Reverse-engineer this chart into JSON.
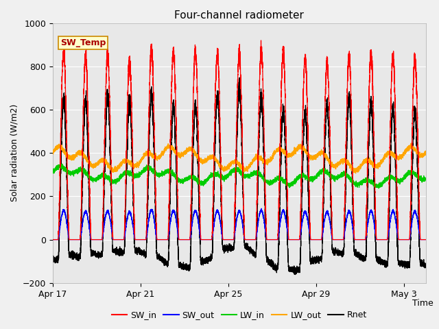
{
  "title": "Four-channel radiometer",
  "xlabel": "Time",
  "ylabel": "Solar radiation (W/m2)",
  "ylim": [
    -200,
    1000
  ],
  "fig_facecolor": "#f0f0f0",
  "axes_facecolor": "#e8e8e8",
  "xtick_labels": [
    "Apr 17",
    "Apr 21",
    "Apr 25",
    "Apr 29",
    "May 3"
  ],
  "xtick_positions": [
    0,
    4,
    8,
    12,
    16
  ],
  "num_days": 17,
  "legend_items": [
    {
      "label": "SW_in",
      "color": "#ff0000"
    },
    {
      "label": "SW_out",
      "color": "#0000ff"
    },
    {
      "label": "LW_in",
      "color": "#00cc00"
    },
    {
      "label": "LW_out",
      "color": "#ffa500"
    },
    {
      "label": "Rnet",
      "color": "#000000"
    }
  ],
  "annotation_text": "SW_Temp",
  "annotation_color": "#aa0000",
  "annotation_bg": "#ffffcc",
  "annotation_border": "#cc8800",
  "sw_in_daily_peaks": [
    870,
    840,
    855,
    820,
    880,
    870,
    865,
    860,
    855,
    870,
    865,
    835,
    820,
    840,
    855,
    845,
    840
  ],
  "sw_out_peak": 140,
  "lw_in_base": 305,
  "lw_out_base": 375,
  "grid_color": "#ffffff",
  "line_width": 0.9
}
